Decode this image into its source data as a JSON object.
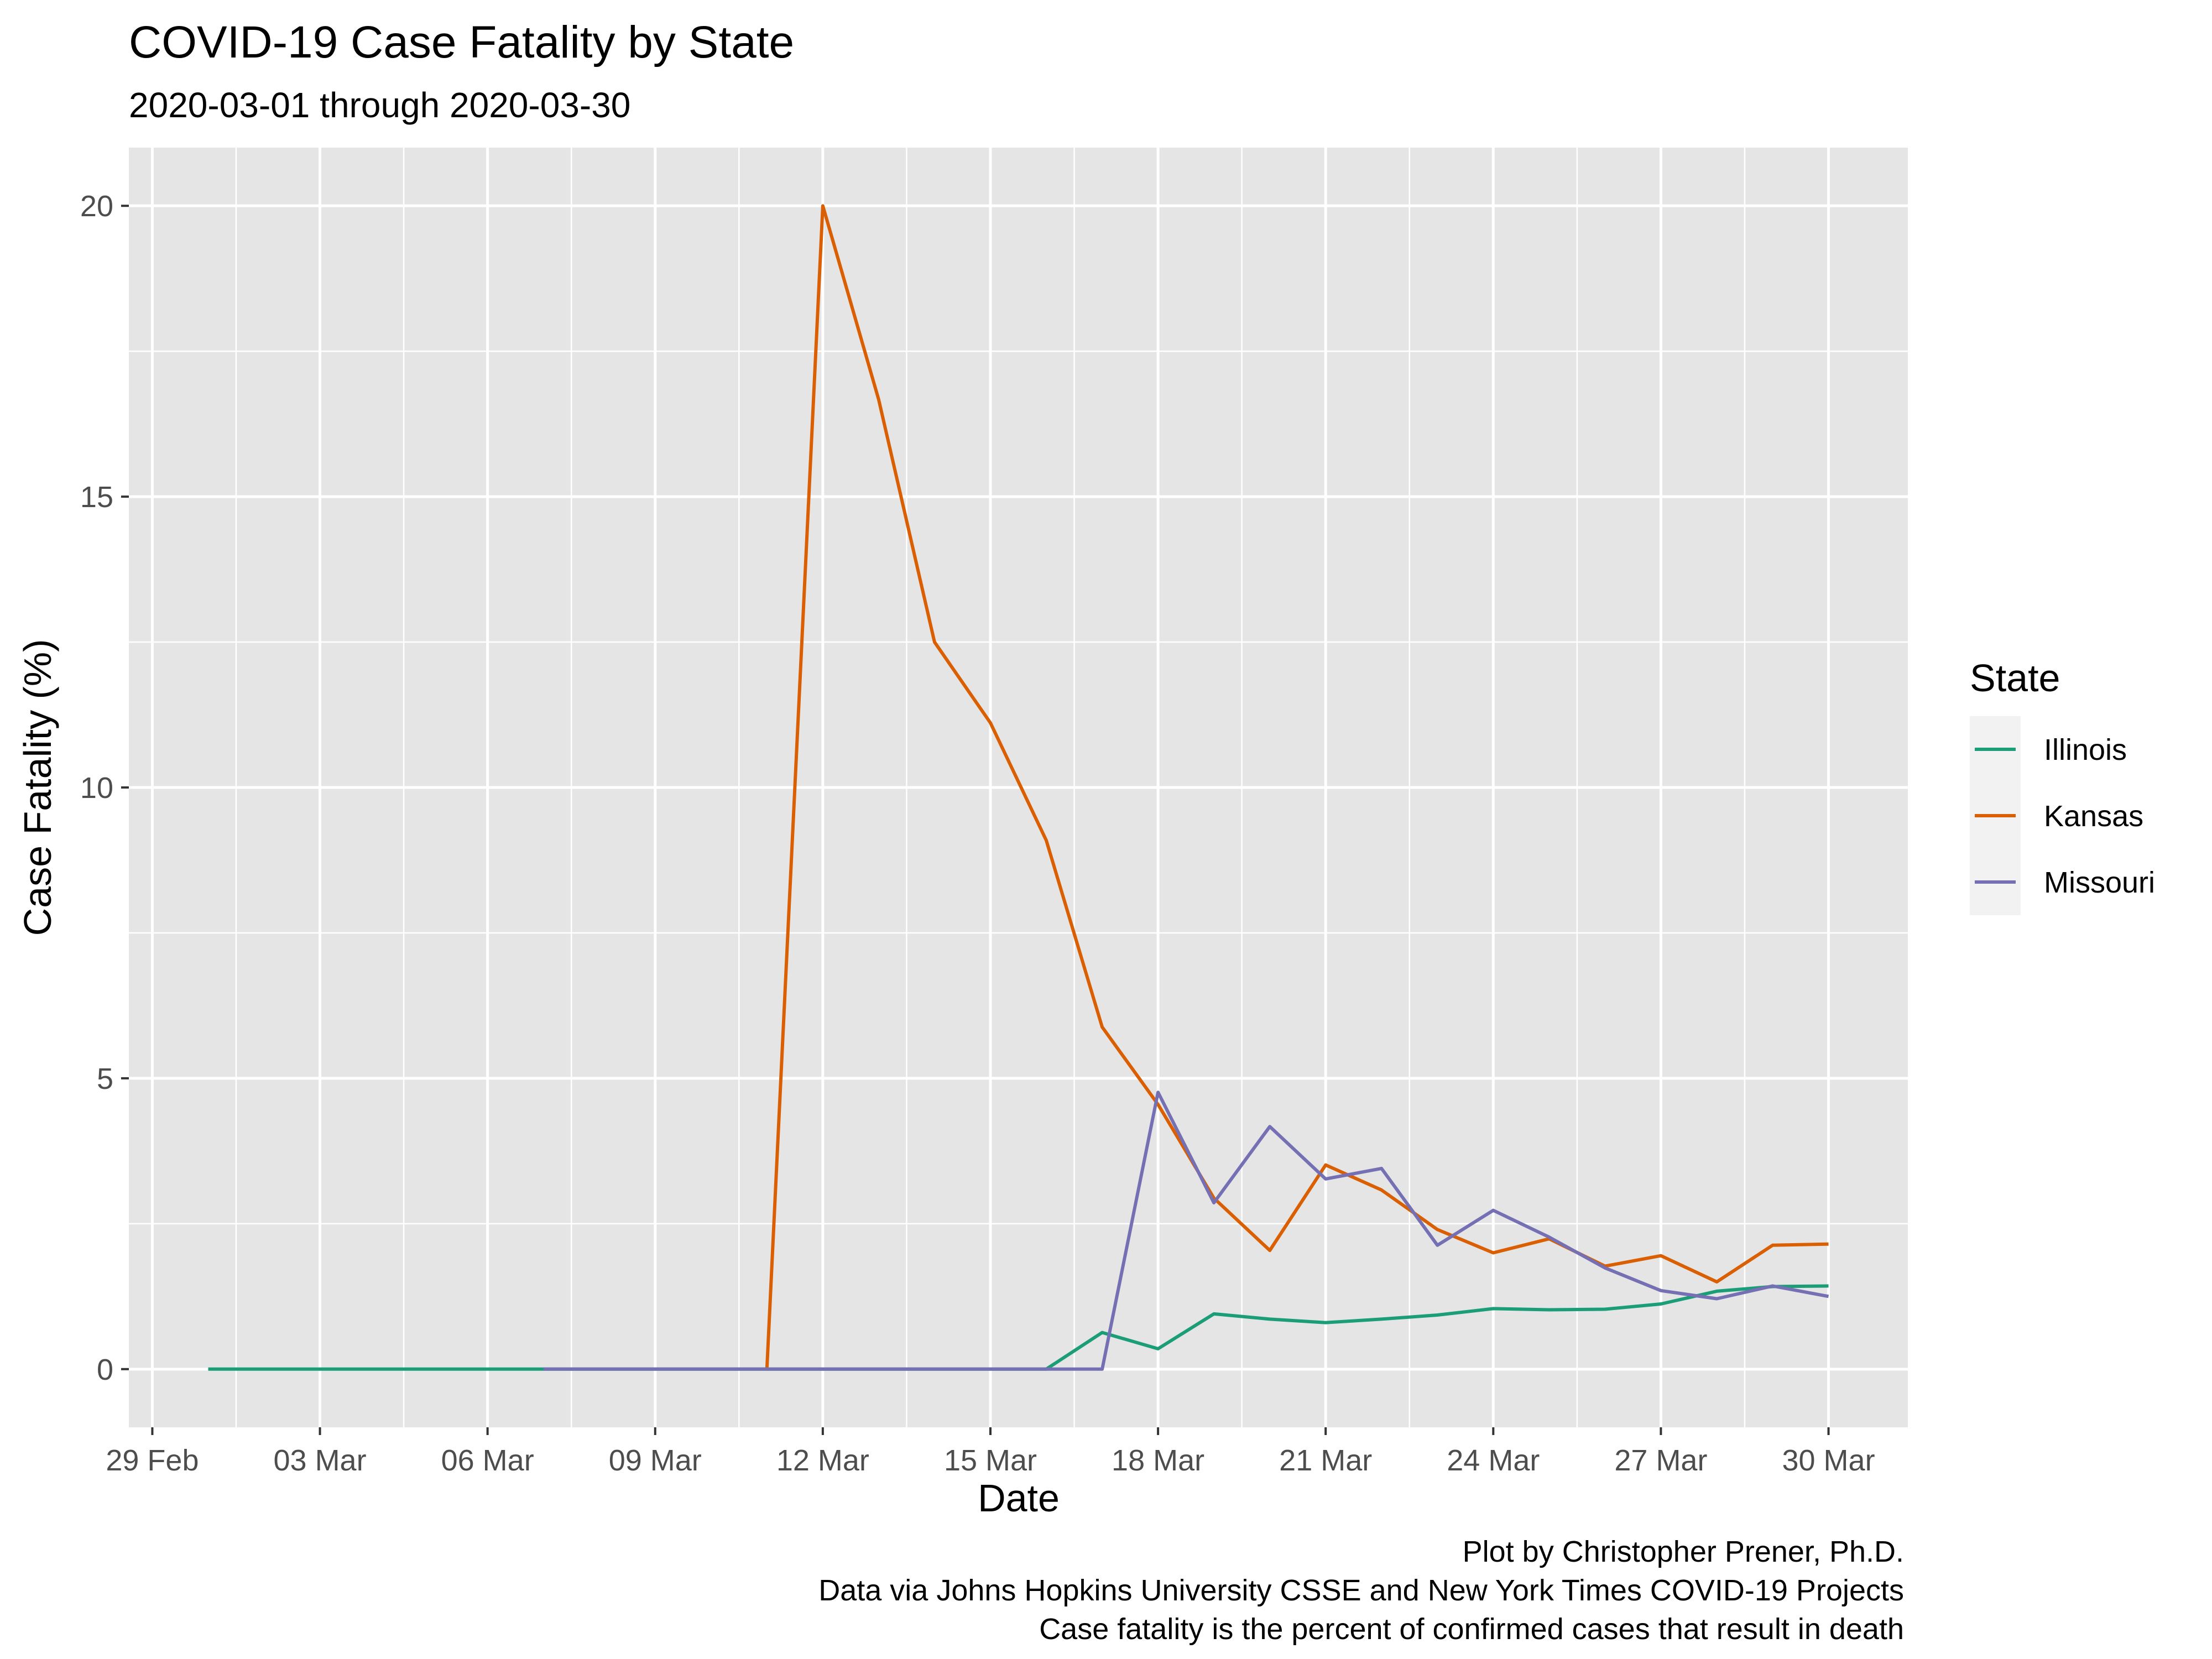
{
  "chart_data": {
    "type": "line",
    "title": "COVID-19 Case Fatality by State",
    "subtitle": "2020-03-01 through 2020-03-30",
    "xlabel": "Date",
    "ylabel": "Case Fatality (%)",
    "xlim": [
      "2020-02-28",
      "2020-03-31"
    ],
    "ylim": [
      -1,
      21
    ],
    "x_ticks": [
      {
        "date": "2020-02-29",
        "label": "29 Feb"
      },
      {
        "date": "2020-03-03",
        "label": "03 Mar"
      },
      {
        "date": "2020-03-06",
        "label": "06 Mar"
      },
      {
        "date": "2020-03-09",
        "label": "09 Mar"
      },
      {
        "date": "2020-03-12",
        "label": "12 Mar"
      },
      {
        "date": "2020-03-15",
        "label": "15 Mar"
      },
      {
        "date": "2020-03-18",
        "label": "18 Mar"
      },
      {
        "date": "2020-03-21",
        "label": "21 Mar"
      },
      {
        "date": "2020-03-24",
        "label": "24 Mar"
      },
      {
        "date": "2020-03-27",
        "label": "27 Mar"
      },
      {
        "date": "2020-03-30",
        "label": "30 Mar"
      }
    ],
    "y_ticks": [
      {
        "value": 0,
        "label": "0"
      },
      {
        "value": 5,
        "label": "5"
      },
      {
        "value": 10,
        "label": "10"
      },
      {
        "value": 15,
        "label": "15"
      },
      {
        "value": 20,
        "label": "20"
      }
    ],
    "grid": true,
    "legend": {
      "title": "State",
      "position": "right"
    },
    "series": [
      {
        "name": "Illinois",
        "color": "#1b9e77",
        "points": [
          {
            "x": "2020-03-01",
            "y": 0
          },
          {
            "x": "2020-03-02",
            "y": 0
          },
          {
            "x": "2020-03-03",
            "y": 0
          },
          {
            "x": "2020-03-04",
            "y": 0
          },
          {
            "x": "2020-03-05",
            "y": 0
          },
          {
            "x": "2020-03-06",
            "y": 0
          },
          {
            "x": "2020-03-07",
            "y": 0
          },
          {
            "x": "2020-03-08",
            "y": 0
          },
          {
            "x": "2020-03-09",
            "y": 0
          },
          {
            "x": "2020-03-10",
            "y": 0
          },
          {
            "x": "2020-03-11",
            "y": 0
          },
          {
            "x": "2020-03-12",
            "y": 0
          },
          {
            "x": "2020-03-13",
            "y": 0
          },
          {
            "x": "2020-03-14",
            "y": 0
          },
          {
            "x": "2020-03-15",
            "y": 0
          },
          {
            "x": "2020-03-16",
            "y": 0
          },
          {
            "x": "2020-03-17",
            "y": 0.63
          },
          {
            "x": "2020-03-18",
            "y": 0.35
          },
          {
            "x": "2020-03-19",
            "y": 0.95
          },
          {
            "x": "2020-03-20",
            "y": 0.86
          },
          {
            "x": "2020-03-21",
            "y": 0.8
          },
          {
            "x": "2020-03-22",
            "y": 0.86
          },
          {
            "x": "2020-03-23",
            "y": 0.93
          },
          {
            "x": "2020-03-24",
            "y": 1.04
          },
          {
            "x": "2020-03-25",
            "y": 1.02
          },
          {
            "x": "2020-03-26",
            "y": 1.03
          },
          {
            "x": "2020-03-27",
            "y": 1.12
          },
          {
            "x": "2020-03-28",
            "y": 1.34
          },
          {
            "x": "2020-03-29",
            "y": 1.42
          },
          {
            "x": "2020-03-30",
            "y": 1.43
          }
        ]
      },
      {
        "name": "Kansas",
        "color": "#d95f02",
        "points": [
          {
            "x": "2020-03-11",
            "y": 0
          },
          {
            "x": "2020-03-12",
            "y": 20
          },
          {
            "x": "2020-03-13",
            "y": 16.67
          },
          {
            "x": "2020-03-14",
            "y": 12.5
          },
          {
            "x": "2020-03-15",
            "y": 11.11
          },
          {
            "x": "2020-03-16",
            "y": 9.09
          },
          {
            "x": "2020-03-17",
            "y": 5.88
          },
          {
            "x": "2020-03-18",
            "y": 4.55
          },
          {
            "x": "2020-03-19",
            "y": 2.94
          },
          {
            "x": "2020-03-20",
            "y": 2.04
          },
          {
            "x": "2020-03-21",
            "y": 3.51
          },
          {
            "x": "2020-03-22",
            "y": 3.08
          },
          {
            "x": "2020-03-23",
            "y": 2.4
          },
          {
            "x": "2020-03-24",
            "y": 2.0
          },
          {
            "x": "2020-03-25",
            "y": 2.24
          },
          {
            "x": "2020-03-26",
            "y": 1.77
          },
          {
            "x": "2020-03-27",
            "y": 1.95
          },
          {
            "x": "2020-03-28",
            "y": 1.5
          },
          {
            "x": "2020-03-29",
            "y": 2.13
          },
          {
            "x": "2020-03-30",
            "y": 2.15
          }
        ]
      },
      {
        "name": "Missouri",
        "color": "#7570b3",
        "points": [
          {
            "x": "2020-03-07",
            "y": 0
          },
          {
            "x": "2020-03-08",
            "y": 0
          },
          {
            "x": "2020-03-09",
            "y": 0
          },
          {
            "x": "2020-03-10",
            "y": 0
          },
          {
            "x": "2020-03-11",
            "y": 0
          },
          {
            "x": "2020-03-12",
            "y": 0
          },
          {
            "x": "2020-03-13",
            "y": 0
          },
          {
            "x": "2020-03-14",
            "y": 0
          },
          {
            "x": "2020-03-15",
            "y": 0
          },
          {
            "x": "2020-03-16",
            "y": 0
          },
          {
            "x": "2020-03-17",
            "y": 0
          },
          {
            "x": "2020-03-18",
            "y": 4.76
          },
          {
            "x": "2020-03-19",
            "y": 2.86
          },
          {
            "x": "2020-03-20",
            "y": 4.17
          },
          {
            "x": "2020-03-21",
            "y": 3.27
          },
          {
            "x": "2020-03-22",
            "y": 3.45
          },
          {
            "x": "2020-03-23",
            "y": 2.13
          },
          {
            "x": "2020-03-24",
            "y": 2.73
          },
          {
            "x": "2020-03-25",
            "y": 2.27
          },
          {
            "x": "2020-03-26",
            "y": 1.74
          },
          {
            "x": "2020-03-27",
            "y": 1.35
          },
          {
            "x": "2020-03-28",
            "y": 1.21
          },
          {
            "x": "2020-03-29",
            "y": 1.43
          },
          {
            "x": "2020-03-30",
            "y": 1.25
          }
        ]
      }
    ],
    "caption": [
      "Plot by Christopher Prener, Ph.D.",
      "Data via Johns Hopkins University CSSE and New York Times COVID-19 Projects",
      "Case fatality is the percent of confirmed cases that result in death"
    ]
  },
  "colors": {
    "panel_background": "#e5e5e5",
    "grid": "#ffffff",
    "legend_key_background": "#f2f2f2"
  }
}
